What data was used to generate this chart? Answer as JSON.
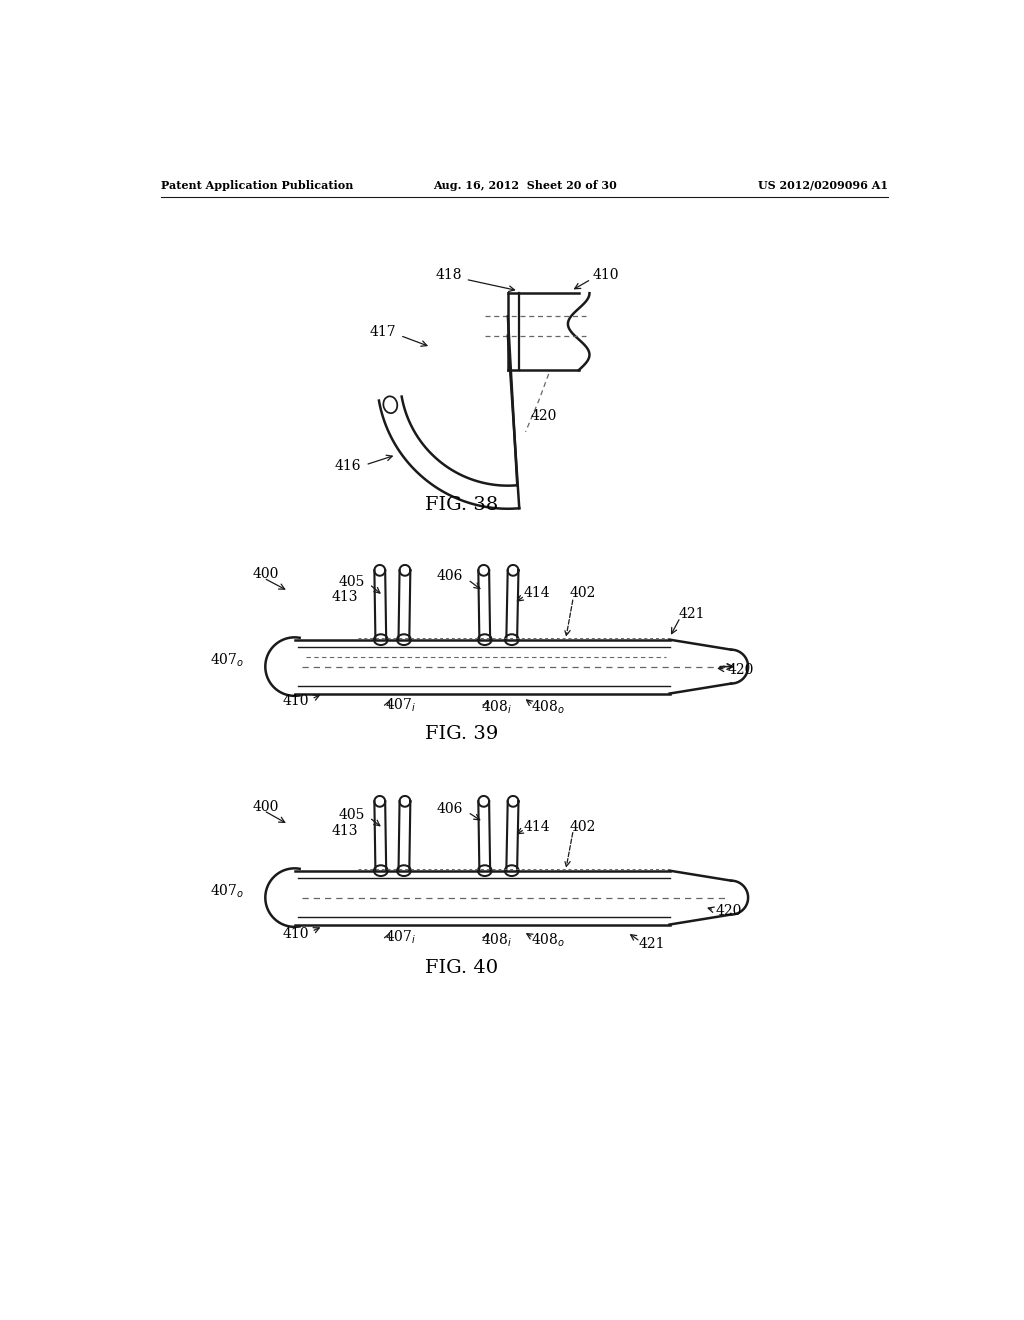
{
  "bg_color": "#ffffff",
  "line_color": "#1a1a1a",
  "dashed_color": "#666666",
  "header": {
    "left": "Patent Application Publication",
    "center": "Aug. 16, 2012  Sheet 20 of 30",
    "right": "US 2012/0209096 A1"
  }
}
